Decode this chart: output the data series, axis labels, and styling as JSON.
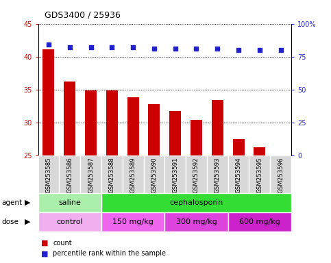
{
  "title": "GDS3400 / 25936",
  "samples": [
    "GSM253585",
    "GSM253586",
    "GSM253587",
    "GSM253588",
    "GSM253589",
    "GSM253590",
    "GSM253591",
    "GSM253592",
    "GSM253593",
    "GSM253594",
    "GSM253595",
    "GSM253596"
  ],
  "counts": [
    41.1,
    36.2,
    34.8,
    34.9,
    33.8,
    32.8,
    31.7,
    30.4,
    33.4,
    27.5,
    26.2,
    25.0
  ],
  "percentile_ranks": [
    84,
    82,
    82,
    82,
    82,
    81,
    81,
    81,
    81,
    80,
    80,
    80
  ],
  "ylim_left": [
    25,
    45
  ],
  "ylim_right": [
    0,
    100
  ],
  "yticks_left": [
    25,
    30,
    35,
    40,
    45
  ],
  "yticks_right": [
    0,
    25,
    50,
    75,
    100
  ],
  "bar_color": "#cc0000",
  "dot_color": "#2222cc",
  "bar_width": 0.55,
  "agent_groups": [
    {
      "label": "saline",
      "start": 0,
      "end": 3,
      "color": "#aaf0aa"
    },
    {
      "label": "cephalosporin",
      "start": 3,
      "end": 12,
      "color": "#33dd33"
    }
  ],
  "dose_groups": [
    {
      "label": "control",
      "start": 0,
      "end": 3,
      "color": "#f0b0f0"
    },
    {
      "label": "150 mg/kg",
      "start": 3,
      "end": 6,
      "color": "#ee66ee"
    },
    {
      "label": "300 mg/kg",
      "start": 6,
      "end": 9,
      "color": "#ee44ee"
    },
    {
      "label": "600 mg/kg",
      "start": 9,
      "end": 12,
      "color": "#dd22dd"
    }
  ],
  "left_tick_color": "#cc0000",
  "right_tick_color": "#2222cc",
  "col_bg_color": "#d8d8d8",
  "col_border_color": "#ffffff"
}
